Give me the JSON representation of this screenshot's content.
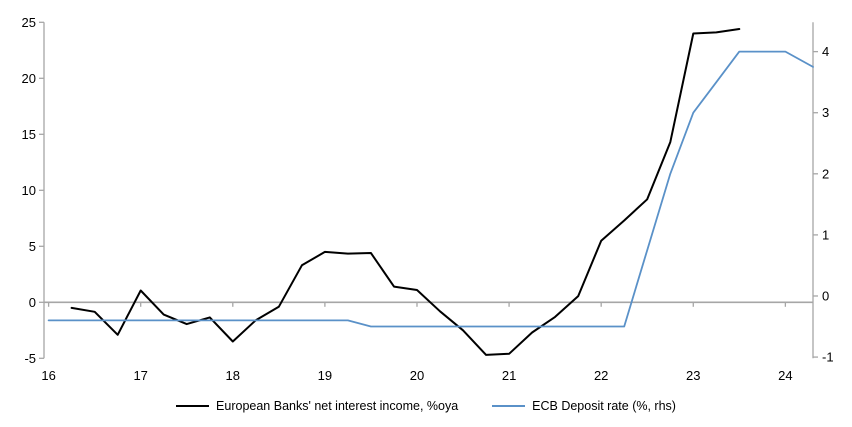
{
  "chart_data": {
    "type": "line",
    "title": "",
    "x_axis": {
      "min": 15.95,
      "max": 24.3,
      "ticks": [
        16,
        17,
        18,
        19,
        20,
        21,
        22,
        23,
        24
      ]
    },
    "left_axis": {
      "min": -5,
      "max": 25,
      "ticks": [
        25,
        20,
        15,
        10,
        5,
        0,
        -5
      ]
    },
    "right_axis": {
      "min": -1.02,
      "max": 4.48,
      "ticks": [
        4,
        3,
        2,
        1,
        0,
        -1
      ]
    },
    "grid": "zero-line-only",
    "legend_position": "bottom-center",
    "series": [
      {
        "name": "European Banks' net interest income, %oya",
        "axis": "left",
        "color": "#000000",
        "points": [
          [
            16.25,
            -0.5
          ],
          [
            16.5,
            -0.85
          ],
          [
            16.75,
            -2.9
          ],
          [
            17.0,
            1.05
          ],
          [
            17.25,
            -1.1
          ],
          [
            17.5,
            -1.95
          ],
          [
            17.75,
            -1.35
          ],
          [
            18.0,
            -3.5
          ],
          [
            18.25,
            -1.6
          ],
          [
            18.5,
            -0.4
          ],
          [
            18.75,
            3.3
          ],
          [
            19.0,
            4.5
          ],
          [
            19.25,
            4.35
          ],
          [
            19.5,
            4.4
          ],
          [
            19.75,
            1.4
          ],
          [
            20.0,
            1.1
          ],
          [
            20.25,
            -0.8
          ],
          [
            20.5,
            -2.5
          ],
          [
            20.75,
            -4.7
          ],
          [
            21.0,
            -4.6
          ],
          [
            21.25,
            -2.7
          ],
          [
            21.5,
            -1.3
          ],
          [
            21.75,
            0.55
          ],
          [
            22.0,
            5.5
          ],
          [
            22.25,
            7.3
          ],
          [
            22.5,
            9.2
          ],
          [
            22.75,
            14.3
          ],
          [
            23.0,
            24.0
          ],
          [
            23.25,
            24.1
          ],
          [
            23.5,
            24.4
          ]
        ]
      },
      {
        "name": "ECB Deposit rate (%, rhs)",
        "axis": "right",
        "color": "#5a91c8",
        "points": [
          [
            16.0,
            -0.4
          ],
          [
            19.25,
            -0.4
          ],
          [
            19.5,
            -0.5
          ],
          [
            22.25,
            -0.5
          ],
          [
            22.5,
            0.75
          ],
          [
            22.75,
            2.0
          ],
          [
            23.0,
            3.0
          ],
          [
            23.25,
            3.5
          ],
          [
            23.5,
            4.0
          ],
          [
            24.0,
            4.0
          ],
          [
            24.3,
            3.75
          ]
        ]
      }
    ],
    "colors": {
      "axis_line": "#a6a6a6",
      "zero_line": "#a6a6a6",
      "tick_label": "#000000"
    }
  }
}
